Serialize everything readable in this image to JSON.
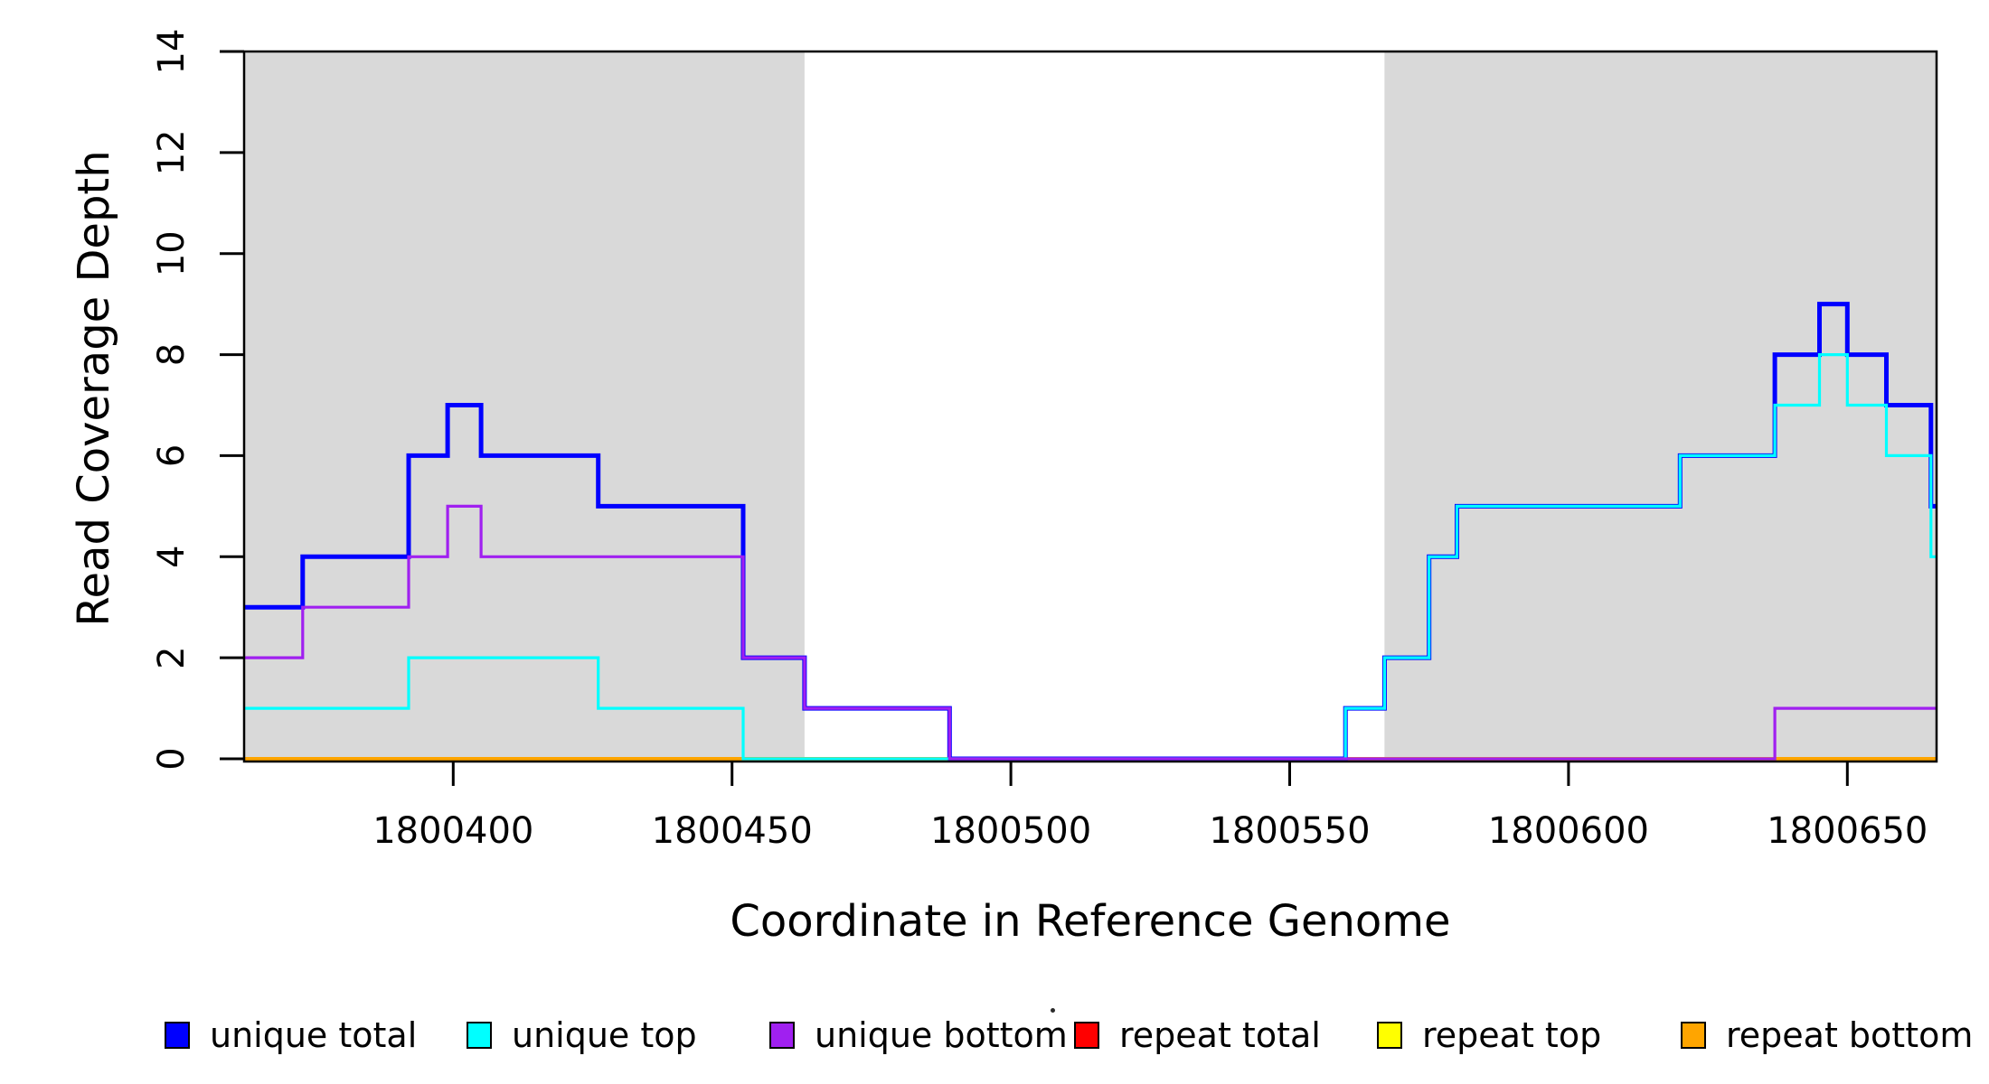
{
  "chart_data": {
    "type": "line",
    "subtype": "step-coverage",
    "title": "",
    "xlabel": "Coordinate in Reference Genome",
    "ylabel": "Read Coverage Depth",
    "xlim": [
      1800362.5,
      1800666
    ],
    "ylim": [
      0,
      14
    ],
    "x_ticks": [
      "1800400",
      "1800450",
      "1800500",
      "1800550",
      "1800600",
      "1800650"
    ],
    "x_tick_values": [
      1800400,
      1800450,
      1800500,
      1800550,
      1800600,
      1800650
    ],
    "y_ticks": [
      "0",
      "2",
      "4",
      "6",
      "8",
      "10",
      "12",
      "14"
    ],
    "y_tick_values": [
      0,
      2,
      4,
      6,
      8,
      10,
      12,
      14
    ],
    "grid": false,
    "legend_position": "bottom",
    "background_color": "#FFFFFF",
    "shaded_region_color": "#D9D9D9",
    "shaded_regions": [
      {
        "start": 1800362.5,
        "end": 1800463
      },
      {
        "start": 1800567,
        "end": 1800666
      }
    ],
    "series": [
      {
        "key": "unique_total",
        "name": "unique total",
        "color": "#0000FF",
        "width": 5,
        "points": [
          [
            1800362.5,
            3
          ],
          [
            1800373,
            4
          ],
          [
            1800392,
            6
          ],
          [
            1800399,
            7
          ],
          [
            1800405,
            6
          ],
          [
            1800426,
            5
          ],
          [
            1800452,
            2
          ],
          [
            1800463,
            1
          ],
          [
            1800489,
            0
          ],
          [
            1800560,
            1
          ],
          [
            1800567,
            2
          ],
          [
            1800575,
            4
          ],
          [
            1800580,
            5
          ],
          [
            1800620,
            6
          ],
          [
            1800637,
            8
          ],
          [
            1800645,
            9
          ],
          [
            1800650,
            8
          ],
          [
            1800657,
            7
          ],
          [
            1800665,
            5
          ]
        ]
      },
      {
        "key": "unique_top",
        "name": "unique top",
        "color": "#00FFFF",
        "width": 3.2,
        "points": [
          [
            1800362.5,
            1
          ],
          [
            1800392,
            2
          ],
          [
            1800426,
            1
          ],
          [
            1800452,
            0
          ],
          [
            1800560,
            1
          ],
          [
            1800567,
            2
          ],
          [
            1800575,
            4
          ],
          [
            1800580,
            5
          ],
          [
            1800620,
            6
          ],
          [
            1800637,
            7
          ],
          [
            1800645,
            8
          ],
          [
            1800650,
            7
          ],
          [
            1800657,
            6
          ],
          [
            1800665,
            4
          ]
        ]
      },
      {
        "key": "unique_bottom",
        "name": "unique bottom",
        "color": "#A020F0",
        "width": 3.2,
        "points": [
          [
            1800362.5,
            2
          ],
          [
            1800373,
            3
          ],
          [
            1800392,
            4
          ],
          [
            1800399,
            5
          ],
          [
            1800405,
            4
          ],
          [
            1800452,
            2
          ],
          [
            1800463,
            1
          ],
          [
            1800489,
            0
          ],
          [
            1800637,
            1
          ]
        ]
      },
      {
        "key": "repeat_total",
        "name": "repeat total",
        "color": "#FF0000",
        "width": 3,
        "points": [
          [
            1800362.5,
            0
          ]
        ]
      },
      {
        "key": "repeat_top",
        "name": "repeat top",
        "color": "#FFFF00",
        "width": 3,
        "points": [
          [
            1800362.5,
            0
          ]
        ]
      },
      {
        "key": "repeat_bottom",
        "name": "repeat bottom",
        "color": "#FFA500",
        "width": 4,
        "points": [
          [
            1800362.5,
            0
          ]
        ]
      }
    ],
    "draw_order": [
      "repeat_total",
      "repeat_top",
      "repeat_bottom",
      "unique_total",
      "unique_top",
      "unique_bottom"
    ]
  }
}
